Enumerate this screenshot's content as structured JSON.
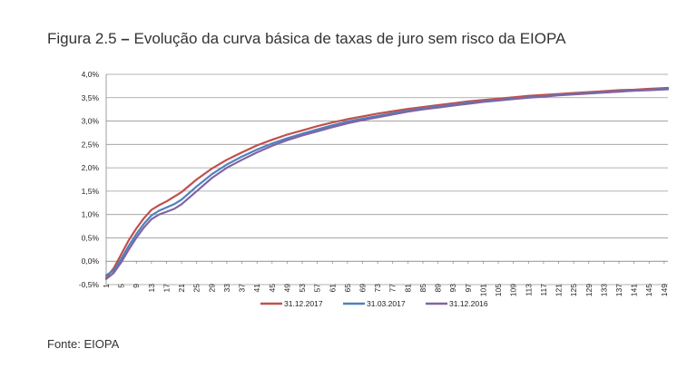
{
  "figure": {
    "number": "Figura 2.5",
    "dash": "–",
    "title": "Evolução da curva básica de taxas de juro sem risco da EIOPA"
  },
  "source_note": "Fonte: EIOPA",
  "chart_data": {
    "type": "line",
    "title": "Figura 2.5 – Evolução da curva básica de taxas de juro sem risco da EIOPA",
    "xlabel": "",
    "ylabel": "",
    "x_ticks": [
      "1",
      "5",
      "9",
      "13",
      "17",
      "21",
      "25",
      "29",
      "33",
      "37",
      "41",
      "45",
      "49",
      "53",
      "57",
      "61",
      "65",
      "69",
      "73",
      "77",
      "81",
      "85",
      "89",
      "93",
      "97",
      "101",
      "105",
      "109",
      "113",
      "117",
      "121",
      "125",
      "129",
      "133",
      "137",
      "141",
      "145",
      "149"
    ],
    "y_ticks": [
      "-0,5%",
      "0,0%",
      "0,5%",
      "1,0%",
      "1,5%",
      "2,0%",
      "2,5%",
      "3,0%",
      "3,5%",
      "4,0%"
    ],
    "xlim": [
      1,
      150
    ],
    "ylim": [
      -0.5,
      4.0
    ],
    "grid": "horizontal",
    "legend_position": "bottom",
    "x": [
      1,
      3,
      5,
      7,
      9,
      11,
      13,
      15,
      17,
      19,
      21,
      25,
      29,
      33,
      37,
      41,
      45,
      49,
      53,
      57,
      61,
      65,
      69,
      73,
      77,
      81,
      85,
      89,
      93,
      97,
      101,
      105,
      109,
      113,
      117,
      121,
      125,
      129,
      133,
      137,
      141,
      145,
      150
    ],
    "series": [
      {
        "name": "31.12.2017",
        "color": "#c0504d",
        "values": [
          -0.35,
          -0.15,
          0.15,
          0.45,
          0.7,
          0.92,
          1.1,
          1.2,
          1.28,
          1.38,
          1.48,
          1.75,
          1.98,
          2.17,
          2.33,
          2.48,
          2.6,
          2.71,
          2.8,
          2.89,
          2.97,
          3.04,
          3.1,
          3.16,
          3.21,
          3.26,
          3.3,
          3.34,
          3.38,
          3.42,
          3.45,
          3.48,
          3.51,
          3.54,
          3.56,
          3.58,
          3.6,
          3.62,
          3.64,
          3.66,
          3.67,
          3.69,
          3.71
        ]
      },
      {
        "name": "31.03.2017",
        "color": "#4f81bd",
        "values": [
          -0.3,
          -0.2,
          0.05,
          0.33,
          0.58,
          0.8,
          0.98,
          1.08,
          1.15,
          1.22,
          1.32,
          1.6,
          1.86,
          2.07,
          2.24,
          2.39,
          2.52,
          2.63,
          2.73,
          2.82,
          2.91,
          2.99,
          3.05,
          3.11,
          3.17,
          3.22,
          3.27,
          3.31,
          3.35,
          3.39,
          3.42,
          3.45,
          3.48,
          3.51,
          3.53,
          3.56,
          3.58,
          3.6,
          3.62,
          3.64,
          3.65,
          3.67,
          3.69
        ]
      },
      {
        "name": "31.12.2016",
        "color": "#8064a2",
        "values": [
          -0.38,
          -0.25,
          -0.02,
          0.25,
          0.5,
          0.72,
          0.9,
          1.0,
          1.06,
          1.12,
          1.22,
          1.5,
          1.78,
          2.0,
          2.17,
          2.33,
          2.47,
          2.59,
          2.69,
          2.78,
          2.87,
          2.95,
          3.02,
          3.08,
          3.14,
          3.2,
          3.25,
          3.29,
          3.33,
          3.37,
          3.41,
          3.44,
          3.47,
          3.5,
          3.52,
          3.55,
          3.57,
          3.59,
          3.61,
          3.63,
          3.65,
          3.66,
          3.68
        ]
      }
    ]
  }
}
